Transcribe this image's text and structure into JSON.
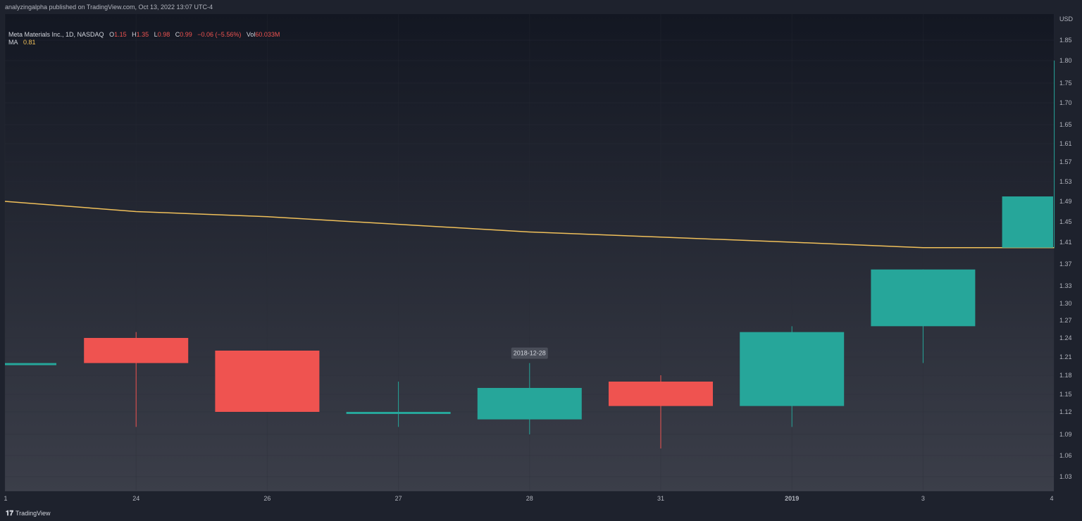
{
  "header": {
    "published_line": "analyzingalpha published on TradingView.com, Oct 13, 2022 13:07 UTC-4"
  },
  "legend": {
    "symbol": "Meta Materials Inc., 1D, NASDAQ",
    "o_label": "O",
    "o_value": "1.15",
    "h_label": "H",
    "h_value": "1.35",
    "l_label": "L",
    "l_value": "0.98",
    "c_label": "C",
    "c_value": "0.99",
    "change": "−0.06 (−5.56%)",
    "vol_label": "Vol",
    "vol_value": "60.033M",
    "ma_label": "MA",
    "ma_value": "0.81"
  },
  "footer": {
    "brand": "TradingView",
    "logo_icon": "tradingview-logo-icon"
  },
  "colors": {
    "background_top": "#131722",
    "background_bottom": "#3b3e49",
    "up": "#26a69a",
    "down": "#ef5350",
    "ma_line": "#f0c05a",
    "grid": "#2a2e39",
    "tooltip_bg": "#4a4e59"
  },
  "chart_data": {
    "type": "candlestick",
    "currency": "USD",
    "y_ticks": [
      "1.85",
      "1.80",
      "1.75",
      "1.70",
      "1.65",
      "1.61",
      "1.57",
      "1.53",
      "1.49",
      "1.45",
      "1.41",
      "1.37",
      "1.33",
      "1.30",
      "1.27",
      "1.24",
      "1.21",
      "1.18",
      "1.15",
      "1.12",
      "1.09",
      "1.06",
      "1.03"
    ],
    "x_ticks": [
      "1",
      "24",
      "26",
      "27",
      "28",
      "31",
      "2019",
      "3",
      "4"
    ],
    "x_tick_bold": [
      false,
      false,
      false,
      false,
      false,
      false,
      true,
      false,
      false
    ],
    "hover_label": "2018-12-28",
    "candles": [
      {
        "date": "2018-12-21",
        "open": 1.2,
        "high": 1.2,
        "low": 1.2,
        "close": 1.2
      },
      {
        "date": "2018-12-24",
        "open": 1.24,
        "high": 1.25,
        "low": 1.1,
        "close": 1.2
      },
      {
        "date": "2018-12-26",
        "open": 1.22,
        "high": 1.22,
        "low": 1.12,
        "close": 1.12
      },
      {
        "date": "2018-12-27",
        "open": 1.12,
        "high": 1.17,
        "low": 1.1,
        "close": 1.12
      },
      {
        "date": "2018-12-28",
        "open": 1.11,
        "high": 1.2,
        "low": 1.09,
        "close": 1.16
      },
      {
        "date": "2018-12-31",
        "open": 1.17,
        "high": 1.18,
        "low": 1.07,
        "close": 1.13
      },
      {
        "date": "2019-01-02",
        "open": 1.13,
        "high": 1.26,
        "low": 1.1,
        "close": 1.25
      },
      {
        "date": "2019-01-03",
        "open": 1.26,
        "high": 1.36,
        "low": 1.2,
        "close": 1.36
      },
      {
        "date": "2019-01-04",
        "open": 1.4,
        "high": 1.8,
        "low": 1.4,
        "close": 1.5
      }
    ],
    "ma": [
      1.49,
      1.47,
      1.46,
      1.445,
      1.43,
      1.42,
      1.41,
      1.4,
      1.4
    ]
  }
}
